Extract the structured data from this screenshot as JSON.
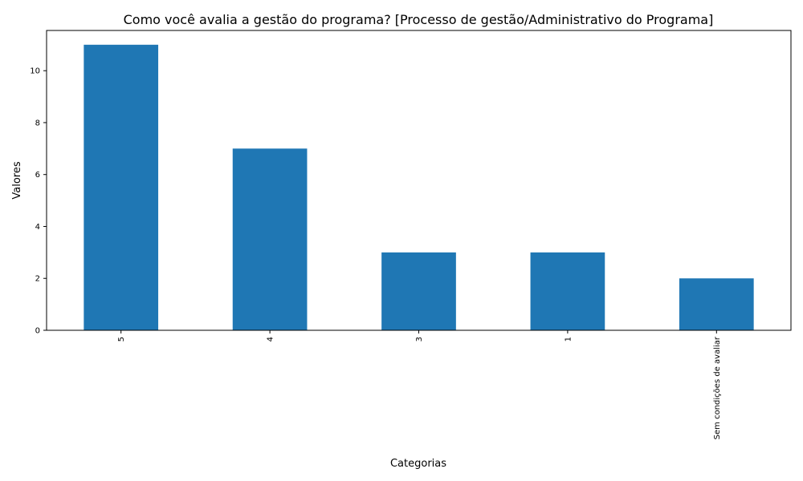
{
  "chart_data": {
    "type": "bar",
    "title": "Como você avalia a gestão do programa? [Processo de gestão/Administrativo do Programa]",
    "xlabel": "Categorias",
    "ylabel": "Valores",
    "categories": [
      "5",
      "4",
      "3",
      "1",
      "Sem condições de avaliar"
    ],
    "values": [
      11,
      7,
      3,
      3,
      2
    ],
    "ylim": [
      0,
      11.55
    ],
    "yticks": [
      "0",
      "2",
      "4",
      "6",
      "8",
      "10"
    ],
    "grid": false,
    "legend": "none",
    "bar_color": "#1f77b4"
  }
}
